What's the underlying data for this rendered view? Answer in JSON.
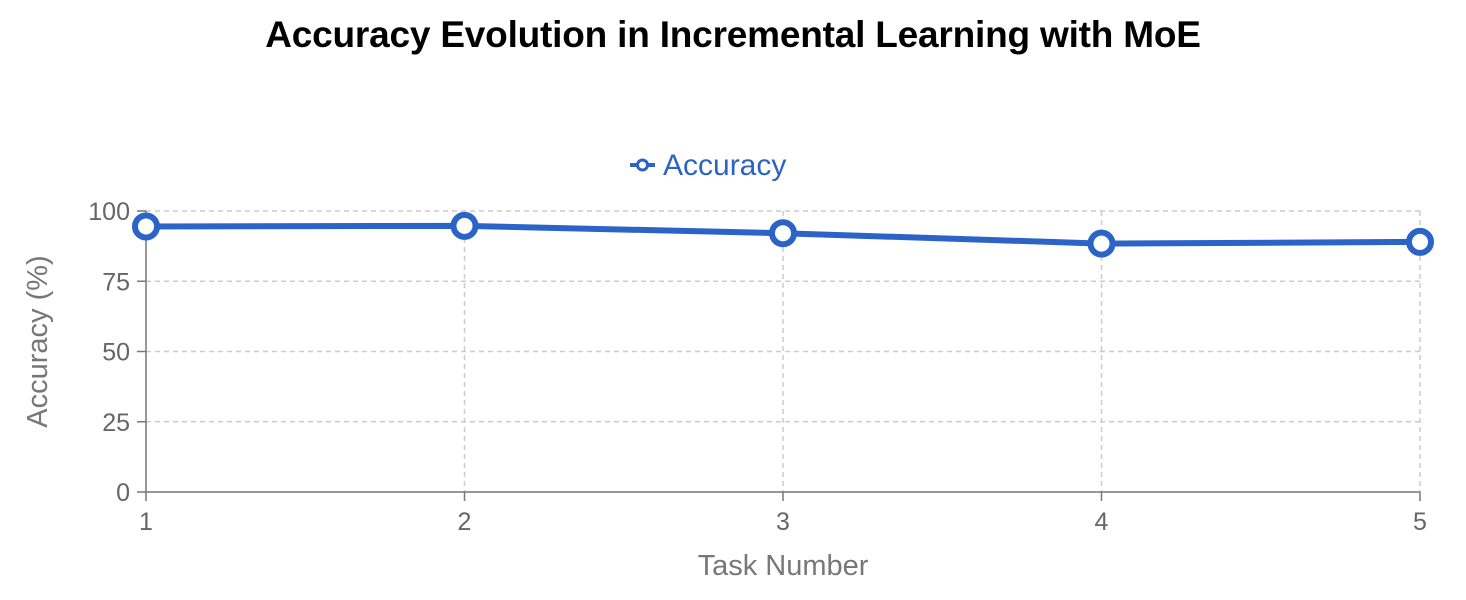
{
  "chart_data": {
    "type": "line",
    "title": "Accuracy Evolution in Incremental Learning with MoE",
    "xlabel": "Task Number",
    "ylabel": "Accuracy (%)",
    "x": [
      1,
      2,
      3,
      4,
      5
    ],
    "series": [
      {
        "name": "Accuracy",
        "values": [
          94.5,
          94.7,
          92.1,
          88.4,
          89.0
        ],
        "color": "#2b63c6"
      }
    ],
    "xlim": [
      1,
      5
    ],
    "ylim": [
      0,
      100
    ],
    "yticks": [
      0,
      25,
      50,
      75,
      100
    ],
    "xticks": [
      1,
      2,
      3,
      4,
      5
    ],
    "grid": true,
    "grid_style": "dashed",
    "legend": "top-center",
    "axis_color": "#777777",
    "text_color": "#666666",
    "grid_color": "#cccccc"
  }
}
